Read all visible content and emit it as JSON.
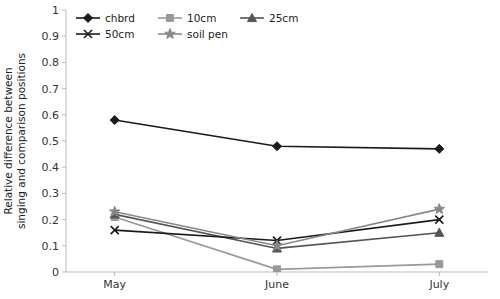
{
  "chart_data": {
    "type": "line",
    "y_label": "Relative difference between\nsinging and comparison positions",
    "categories": [
      "May",
      "June",
      "July"
    ],
    "series": [
      {
        "name": "chbrd",
        "color": "#1a1a1a",
        "marker": "diamond",
        "line_style": "solid",
        "values": [
          0.58,
          0.48,
          0.47
        ]
      },
      {
        "name": "10cm",
        "color": "#999999",
        "marker": "square",
        "line_style": "solid",
        "values": [
          0.21,
          0.01,
          0.03
        ]
      },
      {
        "name": "25cm",
        "color": "#555555",
        "marker": "triangle",
        "line_style": "solid",
        "values": [
          0.22,
          0.09,
          0.15
        ]
      },
      {
        "name": "50cm",
        "color": "#1a1a1a",
        "marker": "x",
        "line_style": "solid",
        "values": [
          0.16,
          0.12,
          0.2
        ]
      },
      {
        "name": "soil pen",
        "color": "#888888",
        "marker": "star",
        "line_style": "solid",
        "values": [
          0.23,
          0.1,
          0.24
        ]
      }
    ],
    "ylim": [
      0,
      1
    ],
    "yticks": [
      0,
      0.1,
      0.2,
      0.3,
      0.4,
      0.5,
      0.6,
      0.7,
      0.8,
      0.9,
      1
    ],
    "grid": false,
    "legend": "upper left"
  }
}
